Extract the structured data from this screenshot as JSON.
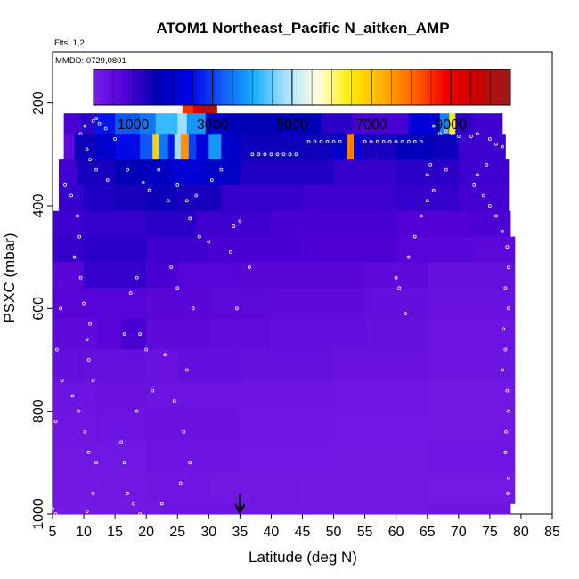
{
  "chart_data": {
    "type": "heatmap",
    "title": "ATOM1 Northeast_Pacific N_aitken_AMP",
    "flights_label": "Flts: 1,2",
    "dates_label": "MMDD: 0729,0801",
    "xlabel": "Latitude (deg N)",
    "ylabel": "PSXC (mbar)",
    "xlim": [
      5,
      85
    ],
    "ylim": [
      1000,
      100
    ],
    "x_ticks": [
      5,
      10,
      15,
      20,
      25,
      30,
      35,
      40,
      45,
      50,
      55,
      60,
      65,
      70,
      75,
      80,
      85
    ],
    "y_ticks": [
      1000,
      800,
      600,
      400,
      200
    ],
    "grid": false,
    "legend": "colorbar-top",
    "colorbar": {
      "min": 0,
      "max": 10500,
      "ticks": [
        1000,
        3000,
        5000,
        7000,
        9000
      ],
      "colors": [
        "#7A1FE6",
        "#5200D6",
        "#0000B5",
        "#0000E6",
        "#0F5AF5",
        "#17AFFF",
        "#A8E1FF",
        "#FFFFE0",
        "#FFEC00",
        "#FFB000",
        "#FF6400",
        "#F00000",
        "#C80000",
        "#961E1E"
      ]
    },
    "marker_latitude": 35,
    "layers": [
      {
        "p_top": 160,
        "p_bot": 220,
        "cells": [
          [
            25.8,
            27.5,
            8500
          ],
          [
            27.5,
            28.8,
            9400
          ],
          [
            28.8,
            30.6,
            10100
          ],
          [
            30.6,
            31.3,
            9800
          ]
        ]
      },
      {
        "p_top": 220,
        "p_bot": 260,
        "cells": [
          [
            6.8,
            9.5,
            900
          ],
          [
            9.5,
            12,
            1200
          ],
          [
            12,
            15,
            2600
          ],
          [
            15,
            19,
            3200
          ],
          [
            19,
            21.5,
            3500
          ],
          [
            21.5,
            25,
            4200
          ],
          [
            25,
            26.5,
            4800
          ],
          [
            26.5,
            29.5,
            3800
          ],
          [
            29.5,
            33,
            2000
          ],
          [
            33,
            48,
            1600
          ],
          [
            48,
            53,
            1200
          ],
          [
            53,
            62,
            900
          ],
          [
            62,
            67,
            2200
          ],
          [
            67,
            68.5,
            3600
          ],
          [
            68.5,
            69.5,
            6400
          ],
          [
            69.5,
            72,
            1200
          ],
          [
            72,
            77,
            1000
          ]
        ]
      },
      {
        "p_top": 260,
        "p_bot": 310,
        "cells": [
          [
            6.8,
            8.5,
            600
          ],
          [
            8.5,
            12,
            1500
          ],
          [
            12,
            15,
            2000
          ],
          [
            15,
            19,
            2500
          ],
          [
            19,
            21,
            3200
          ],
          [
            21,
            22,
            6800
          ],
          [
            22,
            23.5,
            3500
          ],
          [
            23.5,
            24.5,
            2600
          ],
          [
            24.5,
            25.5,
            4800
          ],
          [
            25.5,
            26.8,
            7600
          ],
          [
            26.8,
            28,
            3000
          ],
          [
            28,
            30,
            2200
          ],
          [
            30,
            32,
            3800
          ],
          [
            32,
            35,
            2000
          ],
          [
            35,
            50,
            1500
          ],
          [
            50,
            52.2,
            1900
          ],
          [
            52.2,
            53.2,
            7800
          ],
          [
            53.2,
            54.5,
            2200
          ],
          [
            54.5,
            60,
            1400
          ],
          [
            60,
            66,
            1700
          ],
          [
            66,
            70,
            1500
          ],
          [
            70,
            77.5,
            1000
          ]
        ]
      },
      {
        "p_top": 310,
        "p_bot": 360,
        "cells": [
          [
            6,
            9,
            1000
          ],
          [
            9,
            15,
            1400
          ],
          [
            15,
            20,
            1600
          ],
          [
            20,
            24,
            1800
          ],
          [
            24,
            29,
            2100
          ],
          [
            29,
            35,
            1900
          ],
          [
            35,
            50,
            1300
          ],
          [
            50,
            60,
            1100
          ],
          [
            60,
            70,
            1200
          ],
          [
            70,
            78,
            1000
          ]
        ]
      },
      {
        "p_top": 360,
        "p_bot": 410,
        "cells": [
          [
            6,
            10,
            1100
          ],
          [
            10,
            15,
            1300
          ],
          [
            15,
            20,
            1400
          ],
          [
            20,
            25,
            1500
          ],
          [
            25,
            32,
            1400
          ],
          [
            32,
            45,
            1100
          ],
          [
            45,
            60,
            1000
          ],
          [
            60,
            70,
            1100
          ],
          [
            70,
            78,
            950
          ]
        ]
      },
      {
        "p_top": 410,
        "p_bot": 460,
        "cells": [
          [
            5,
            10,
            1000
          ],
          [
            10,
            20,
            1100
          ],
          [
            20,
            28,
            1200
          ],
          [
            28,
            40,
            1000
          ],
          [
            40,
            60,
            900
          ],
          [
            60,
            72,
            800
          ],
          [
            72,
            78.3,
            850
          ]
        ]
      },
      {
        "p_top": 460,
        "p_bot": 510,
        "cells": [
          [
            5,
            10,
            1100
          ],
          [
            10,
            20,
            1200
          ],
          [
            20,
            30,
            1000
          ],
          [
            30,
            45,
            900
          ],
          [
            45,
            60,
            850
          ],
          [
            60,
            72,
            700
          ],
          [
            72,
            79,
            600
          ]
        ]
      },
      {
        "p_top": 510,
        "p_bot": 560,
        "cells": [
          [
            5,
            10,
            650
          ],
          [
            10,
            20,
            1100
          ],
          [
            20,
            25,
            900
          ],
          [
            25,
            35,
            700
          ],
          [
            35,
            45,
            650
          ],
          [
            45,
            55,
            650
          ],
          [
            55,
            65,
            550
          ],
          [
            65,
            79,
            400
          ]
        ]
      },
      {
        "p_top": 560,
        "p_bot": 620,
        "cells": [
          [
            5,
            10,
            700
          ],
          [
            10,
            20,
            700
          ],
          [
            20,
            30,
            650
          ],
          [
            30,
            40,
            600
          ],
          [
            40,
            55,
            550
          ],
          [
            55,
            65,
            450
          ],
          [
            65,
            79,
            350
          ]
        ]
      },
      {
        "p_top": 620,
        "p_bot": 680,
        "cells": [
          [
            5,
            12,
            550
          ],
          [
            12,
            16,
            650
          ],
          [
            16,
            20,
            900
          ],
          [
            20,
            30,
            550
          ],
          [
            30,
            40,
            500
          ],
          [
            40,
            55,
            450
          ],
          [
            55,
            65,
            400
          ],
          [
            65,
            79,
            300
          ]
        ]
      },
      {
        "p_top": 680,
        "p_bot": 740,
        "cells": [
          [
            5,
            10,
            450
          ],
          [
            10,
            20,
            400
          ],
          [
            20,
            25,
            350
          ],
          [
            25,
            35,
            450
          ],
          [
            35,
            50,
            400
          ],
          [
            50,
            65,
            350
          ],
          [
            65,
            79,
            280
          ]
        ]
      },
      {
        "p_top": 740,
        "p_bot": 800,
        "cells": [
          [
            5,
            12,
            300
          ],
          [
            12,
            20,
            350
          ],
          [
            20,
            35,
            300
          ],
          [
            35,
            50,
            280
          ],
          [
            50,
            65,
            250
          ],
          [
            65,
            79,
            200
          ]
        ]
      },
      {
        "p_top": 800,
        "p_bot": 860,
        "cells": [
          [
            5,
            12,
            250
          ],
          [
            12,
            20,
            300
          ],
          [
            20,
            35,
            320
          ],
          [
            35,
            50,
            270
          ],
          [
            50,
            65,
            220
          ],
          [
            65,
            79,
            200
          ]
        ]
      },
      {
        "p_top": 860,
        "p_bot": 920,
        "cells": [
          [
            5,
            12,
            200
          ],
          [
            12,
            20,
            220
          ],
          [
            20,
            35,
            280
          ],
          [
            35,
            50,
            220
          ],
          [
            50,
            65,
            200
          ],
          [
            65,
            79,
            260
          ]
        ]
      },
      {
        "p_top": 920,
        "p_bot": 980,
        "cells": [
          [
            5,
            12,
            180
          ],
          [
            12,
            20,
            200
          ],
          [
            20,
            30,
            250
          ],
          [
            30,
            45,
            200
          ],
          [
            45,
            65,
            180
          ],
          [
            65,
            79,
            160
          ]
        ]
      },
      {
        "p_top": 980,
        "p_bot": 1020,
        "cells": [
          [
            5,
            10,
            150
          ],
          [
            10,
            22,
            180
          ],
          [
            22,
            35,
            300
          ],
          [
            35,
            50,
            200
          ],
          [
            50,
            65,
            170
          ],
          [
            65,
            78.3,
            280
          ]
        ]
      }
    ],
    "observations": [
      [
        9.5,
        260
      ],
      [
        10.2,
        245
      ],
      [
        11.5,
        235
      ],
      [
        12,
        230
      ],
      [
        12.5,
        240
      ],
      [
        13.5,
        250
      ],
      [
        10.5,
        290
      ],
      [
        11,
        310
      ],
      [
        12,
        330
      ],
      [
        13.8,
        350
      ],
      [
        15,
        270
      ],
      [
        17,
        330
      ],
      [
        19.5,
        355
      ],
      [
        20.5,
        370
      ],
      [
        22,
        330
      ],
      [
        23.5,
        390
      ],
      [
        25,
        360
      ],
      [
        26.5,
        390
      ],
      [
        27,
        425
      ],
      [
        28,
        380
      ],
      [
        30.5,
        350
      ],
      [
        32,
        330
      ],
      [
        34,
        440
      ],
      [
        35,
        430
      ],
      [
        37,
        300
      ],
      [
        38,
        300
      ],
      [
        39,
        300
      ],
      [
        40,
        300
      ],
      [
        41,
        300
      ],
      [
        42,
        300
      ],
      [
        43,
        300
      ],
      [
        44,
        300
      ],
      [
        46,
        275
      ],
      [
        47,
        275
      ],
      [
        48,
        275
      ],
      [
        49,
        275
      ],
      [
        50,
        275
      ],
      [
        51,
        275
      ],
      [
        55,
        275
      ],
      [
        56,
        275
      ],
      [
        57,
        275
      ],
      [
        58,
        275
      ],
      [
        59,
        275
      ],
      [
        60,
        275
      ],
      [
        61,
        275
      ],
      [
        62,
        275
      ],
      [
        63,
        275
      ],
      [
        64,
        275
      ],
      [
        66,
        245
      ],
      [
        67,
        260
      ],
      [
        68,
        255
      ],
      [
        69,
        260
      ],
      [
        70,
        265
      ],
      [
        72,
        265
      ],
      [
        73,
        260
      ],
      [
        75,
        270
      ],
      [
        76,
        280
      ],
      [
        77,
        285
      ],
      [
        65.5,
        320
      ],
      [
        65,
        340
      ],
      [
        68,
        330
      ],
      [
        72.5,
        360
      ],
      [
        74,
        380
      ],
      [
        75,
        400
      ],
      [
        76,
        420
      ],
      [
        77,
        450
      ],
      [
        77.8,
        480
      ],
      [
        78,
        520
      ],
      [
        77.5,
        560
      ],
      [
        78,
        600
      ],
      [
        77.2,
        640
      ],
      [
        77.5,
        680
      ],
      [
        77,
        720
      ],
      [
        77.8,
        760
      ],
      [
        78,
        800
      ],
      [
        77.6,
        840
      ],
      [
        77.5,
        880
      ],
      [
        78,
        930
      ],
      [
        77.9,
        960
      ],
      [
        7,
        360
      ],
      [
        8,
        380
      ],
      [
        9,
        420
      ],
      [
        9.3,
        460
      ],
      [
        8.5,
        500
      ],
      [
        9.5,
        540
      ],
      [
        10,
        590
      ],
      [
        11,
        630
      ],
      [
        10.5,
        660
      ],
      [
        10.8,
        700
      ],
      [
        11.5,
        740
      ],
      [
        8.2,
        770
      ],
      [
        9.2,
        800
      ],
      [
        10.2,
        840
      ],
      [
        10.8,
        880
      ],
      [
        12,
        900
      ],
      [
        11.5,
        960
      ],
      [
        10.5,
        995
      ],
      [
        6.3,
        600
      ],
      [
        5.7,
        680
      ],
      [
        6.5,
        740
      ],
      [
        5.5,
        820
      ],
      [
        5,
        990
      ],
      [
        5.5,
        1000
      ],
      [
        16.5,
        650
      ],
      [
        17.5,
        570
      ],
      [
        18.5,
        540
      ],
      [
        19,
        650
      ],
      [
        20,
        680
      ],
      [
        23,
        690
      ],
      [
        24,
        520
      ],
      [
        25,
        560
      ],
      [
        27.5,
        600
      ],
      [
        28.5,
        460
      ],
      [
        26.5,
        720
      ],
      [
        24.5,
        780
      ],
      [
        26,
        840
      ],
      [
        27,
        900
      ],
      [
        25.5,
        940
      ],
      [
        22.5,
        980
      ],
      [
        18,
        980
      ],
      [
        19,
        1000
      ],
      [
        17,
        960
      ],
      [
        16.5,
        900
      ],
      [
        16,
        860
      ],
      [
        18.5,
        800
      ],
      [
        21,
        760
      ],
      [
        33.5,
        490
      ],
      [
        36.5,
        520
      ],
      [
        30,
        470
      ],
      [
        34.5,
        600
      ],
      [
        60,
        540
      ],
      [
        62,
        500
      ],
      [
        63,
        460
      ],
      [
        64,
        420
      ],
      [
        65,
        390
      ],
      [
        66,
        370
      ],
      [
        60.5,
        560
      ],
      [
        61.5,
        610
      ],
      [
        73,
        340
      ],
      [
        74.5,
        320
      ]
    ]
  }
}
